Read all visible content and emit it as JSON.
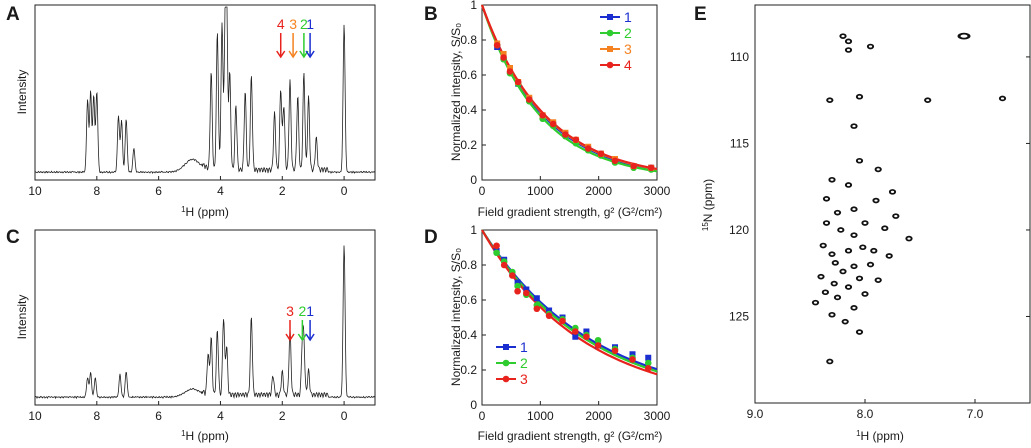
{
  "figure": {
    "panels": [
      {
        "letter": "A"
      },
      {
        "letter": "B"
      },
      {
        "letter": "C"
      },
      {
        "letter": "D"
      },
      {
        "letter": "E"
      }
    ]
  },
  "chart_data": [
    {
      "id": "A",
      "type": "line",
      "panel": "A",
      "title": "",
      "xlabel_sup": "1",
      "xlabel_rest": "H (ppm)",
      "ylabel": "Intensity",
      "xlim": [
        10,
        -1
      ],
      "xticks": [
        "10",
        "8",
        "6",
        "4",
        "2",
        "0"
      ],
      "xtick_values": [
        10,
        8,
        6,
        4,
        2,
        0
      ],
      "peaks": [
        [
          8.3,
          0.45
        ],
        [
          8.2,
          0.5
        ],
        [
          8.1,
          0.47
        ],
        [
          8.0,
          0.5
        ],
        [
          7.3,
          0.35
        ],
        [
          7.2,
          0.32
        ],
        [
          7.05,
          0.33
        ],
        [
          6.8,
          0.15
        ],
        [
          4.3,
          0.6
        ],
        [
          4.1,
          0.85
        ],
        [
          3.95,
          0.9
        ],
        [
          3.85,
          0.75
        ],
        [
          3.8,
          0.95
        ],
        [
          3.7,
          0.6
        ],
        [
          3.5,
          0.4
        ],
        [
          3.2,
          0.48
        ],
        [
          3.0,
          0.58
        ],
        [
          2.25,
          0.35
        ],
        [
          2.05,
          0.5
        ],
        [
          1.95,
          0.4
        ],
        [
          1.75,
          0.55
        ],
        [
          1.5,
          0.45
        ],
        [
          1.3,
          0.6
        ],
        [
          1.15,
          0.45
        ],
        [
          0.9,
          0.2
        ],
        [
          0.0,
          0.92
        ]
      ],
      "annotations": [
        {
          "label": "4",
          "ppm": 2.05,
          "color": "#e8231d"
        },
        {
          "label": "3",
          "ppm": 1.65,
          "color": "#f58220"
        },
        {
          "label": "2",
          "ppm": 1.3,
          "color": "#2ecc2e"
        },
        {
          "label": "1",
          "ppm": 1.1,
          "color": "#1b2fd1"
        }
      ]
    },
    {
      "id": "B",
      "type": "scatter",
      "panel": "B",
      "xlabel": "Field gradient strength, g² (G²/cm²)",
      "ylabel": "Normalized intensity, S/S₀",
      "xlim": [
        0,
        3000
      ],
      "ylim": [
        0,
        1
      ],
      "xticks": [
        "0",
        "1000",
        "2000",
        "3000"
      ],
      "xtick_values": [
        0,
        1000,
        2000,
        3000
      ],
      "yticks": [
        "0",
        "0.2",
        "0.4",
        "0.6",
        "0.8",
        "1"
      ],
      "ytick_values": [
        0,
        0.2,
        0.4,
        0.6,
        0.8,
        1
      ],
      "x": [
        260,
        370,
        480,
        620,
        810,
        1040,
        1220,
        1430,
        1610,
        1820,
        2040,
        2280,
        2600,
        2900
      ],
      "series": [
        {
          "name": "1",
          "color": "#1b2fd1",
          "marker": "square",
          "decay": 0.00095,
          "values": [
            0.76,
            0.7,
            0.63,
            0.55,
            0.46,
            0.36,
            0.32,
            0.26,
            0.22,
            0.18,
            0.15,
            0.11,
            0.08,
            0.07
          ]
        },
        {
          "name": "2",
          "color": "#2ecc2e",
          "marker": "circle",
          "decay": 0.001,
          "values": [
            0.77,
            0.69,
            0.61,
            0.55,
            0.45,
            0.35,
            0.31,
            0.25,
            0.21,
            0.17,
            0.14,
            0.1,
            0.07,
            0.06
          ]
        },
        {
          "name": "3",
          "color": "#f58220",
          "marker": "square",
          "decay": 0.00093,
          "values": [
            0.78,
            0.72,
            0.64,
            0.56,
            0.47,
            0.37,
            0.33,
            0.27,
            0.23,
            0.19,
            0.15,
            0.12,
            0.08,
            0.07
          ]
        },
        {
          "name": "4",
          "color": "#e8231d",
          "marker": "circle",
          "decay": 0.00092,
          "values": [
            0.77,
            0.7,
            0.62,
            0.56,
            0.46,
            0.37,
            0.32,
            0.26,
            0.23,
            0.18,
            0.15,
            0.11,
            0.08,
            0.07
          ]
        }
      ],
      "legend_placement": "top-right"
    },
    {
      "id": "C",
      "type": "line",
      "panel": "C",
      "xlabel_sup": "1",
      "xlabel_rest": "H (ppm)",
      "ylabel": "Intensity",
      "xlim": [
        10,
        -1
      ],
      "xticks": [
        "10",
        "8",
        "6",
        "4",
        "2",
        "0"
      ],
      "xtick_values": [
        10,
        8,
        6,
        4,
        2,
        0
      ],
      "peaks": [
        [
          8.3,
          0.12
        ],
        [
          8.2,
          0.15
        ],
        [
          8.05,
          0.12
        ],
        [
          7.25,
          0.14
        ],
        [
          7.05,
          0.16
        ],
        [
          4.4,
          0.25
        ],
        [
          4.3,
          0.35
        ],
        [
          4.1,
          0.4
        ],
        [
          3.9,
          0.48
        ],
        [
          3.8,
          0.3
        ],
        [
          3.0,
          0.48
        ],
        [
          2.3,
          0.12
        ],
        [
          2.0,
          0.14
        ],
        [
          1.75,
          0.4
        ],
        [
          1.35,
          0.3
        ],
        [
          1.3,
          0.28
        ],
        [
          1.15,
          0.15
        ],
        [
          0.0,
          0.95
        ]
      ],
      "annotations": [
        {
          "label": "3",
          "ppm": 1.75,
          "color": "#e8231d"
        },
        {
          "label": "2",
          "ppm": 1.35,
          "color": "#2ecc2e"
        },
        {
          "label": "1",
          "ppm": 1.1,
          "color": "#1b2fd1"
        }
      ]
    },
    {
      "id": "D",
      "type": "scatter",
      "panel": "D",
      "xlabel": "Field gradient strength, g² (G²/cm²)",
      "ylabel": "Normalized intensity, S/S₀",
      "xlim": [
        0,
        3000
      ],
      "ylim": [
        0,
        1
      ],
      "xticks": [
        "0",
        "1000",
        "2000",
        "3000"
      ],
      "xtick_values": [
        0,
        1000,
        2000,
        3000
      ],
      "yticks": [
        "0",
        "0.2",
        "0.4",
        "0.6",
        "0.8",
        "1"
      ],
      "ytick_values": [
        0,
        0.2,
        0.4,
        0.6,
        0.8,
        1
      ],
      "x": [
        250,
        380,
        520,
        610,
        760,
        940,
        1150,
        1380,
        1600,
        1790,
        1990,
        2280,
        2580,
        2850
      ],
      "series": [
        {
          "name": "1",
          "color": "#1b2fd1",
          "marker": "square",
          "decay": 0.00053,
          "values": [
            0.88,
            0.83,
            0.75,
            0.7,
            0.66,
            0.61,
            0.54,
            0.5,
            0.39,
            0.42,
            0.34,
            0.33,
            0.29,
            0.27
          ]
        },
        {
          "name": "2",
          "color": "#2ecc2e",
          "marker": "circle",
          "decay": 0.00055,
          "values": [
            0.87,
            0.82,
            0.76,
            0.68,
            0.63,
            0.57,
            0.52,
            0.49,
            0.44,
            0.4,
            0.37,
            0.32,
            0.27,
            0.24
          ]
        },
        {
          "name": "3",
          "color": "#e8231d",
          "marker": "circle",
          "decay": 0.00058,
          "values": [
            0.91,
            0.8,
            0.74,
            0.65,
            0.64,
            0.55,
            0.51,
            0.48,
            0.42,
            0.39,
            0.34,
            0.31,
            0.26,
            0.21
          ]
        }
      ],
      "legend_placement": "bottom-left"
    },
    {
      "id": "E",
      "type": "scatter",
      "panel": "E",
      "xlabel_sup": "1",
      "xlabel_rest": "H (ppm)",
      "ylabel_sup": "15",
      "ylabel_rest": "N (ppm)",
      "xlim": [
        9.0,
        6.5
      ],
      "ylim": [
        107,
        130
      ],
      "xticks": [
        "9.0",
        "8.0",
        "7.0"
      ],
      "xtick_values": [
        9.0,
        8.0,
        7.0
      ],
      "yticks": [
        "110",
        "115",
        "120",
        "125"
      ],
      "ytick_values": [
        110,
        115,
        120,
        125
      ],
      "peaks": [
        [
          7.1,
          108.8
        ],
        [
          8.2,
          108.8
        ],
        [
          8.15,
          109.1
        ],
        [
          7.95,
          109.4
        ],
        [
          8.15,
          109.6
        ],
        [
          8.32,
          112.5
        ],
        [
          8.05,
          112.3
        ],
        [
          7.43,
          112.5
        ],
        [
          6.75,
          112.4
        ],
        [
          8.1,
          114.0
        ],
        [
          8.05,
          116.0
        ],
        [
          7.88,
          116.5
        ],
        [
          8.3,
          117.1
        ],
        [
          8.15,
          117.4
        ],
        [
          7.75,
          117.8
        ],
        [
          8.35,
          118.2
        ],
        [
          7.9,
          118.3
        ],
        [
          8.1,
          118.8
        ],
        [
          8.25,
          119.0
        ],
        [
          7.72,
          119.2
        ],
        [
          8.35,
          119.6
        ],
        [
          8.0,
          119.6
        ],
        [
          7.82,
          119.9
        ],
        [
          8.22,
          120.0
        ],
        [
          8.1,
          120.3
        ],
        [
          7.6,
          120.5
        ],
        [
          8.38,
          120.9
        ],
        [
          8.02,
          121.0
        ],
        [
          7.92,
          121.2
        ],
        [
          8.15,
          121.2
        ],
        [
          8.3,
          121.4
        ],
        [
          7.78,
          121.5
        ],
        [
          8.27,
          121.9
        ],
        [
          8.1,
          122.1
        ],
        [
          7.95,
          122.0
        ],
        [
          8.2,
          122.4
        ],
        [
          8.4,
          122.7
        ],
        [
          8.05,
          122.8
        ],
        [
          7.88,
          122.9
        ],
        [
          8.28,
          123.1
        ],
        [
          8.15,
          123.3
        ],
        [
          8.36,
          123.6
        ],
        [
          8.0,
          123.7
        ],
        [
          8.25,
          123.9
        ],
        [
          8.45,
          124.2
        ],
        [
          8.1,
          124.5
        ],
        [
          8.3,
          124.9
        ],
        [
          8.18,
          125.3
        ],
        [
          8.05,
          125.9
        ],
        [
          8.32,
          127.6
        ]
      ]
    }
  ]
}
